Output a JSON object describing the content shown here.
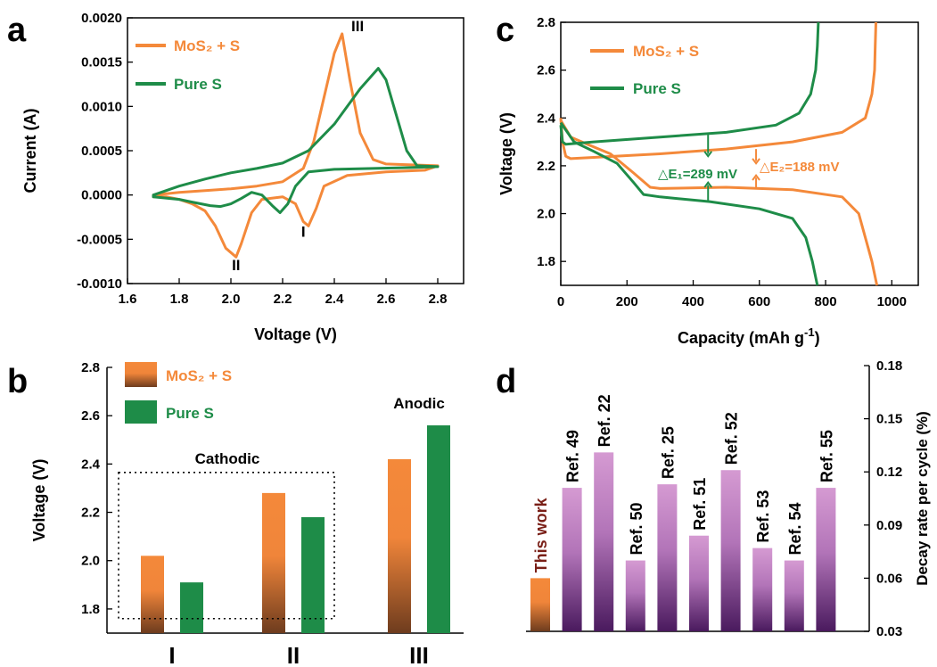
{
  "colors": {
    "orange": "#F4893A",
    "green": "#1E8C48",
    "brown": "#6E3C1E",
    "purple_top": "#D59AD2",
    "purple_bottom": "#4A1A5E",
    "axis": "#000000",
    "this_work_label": "#7A2018"
  },
  "chart_data": [
    {
      "panel": "a",
      "type": "line",
      "panel_letter": "a",
      "xlabel": "Voltage (V)",
      "ylabel": "Current (A)",
      "xlim": [
        1.6,
        2.9
      ],
      "ylim": [
        -0.001,
        0.002
      ],
      "xticks": [
        "1.6",
        "1.8",
        "2.0",
        "2.2",
        "2.4",
        "2.6",
        "2.8"
      ],
      "yticks": [
        "-0.0010",
        "-0.0005",
        "0.0000",
        "0.0005",
        "0.0010",
        "0.0015",
        "0.0020"
      ],
      "legend": [
        "MoS₂ + S",
        "Pure S"
      ],
      "legend_placement": "top-left",
      "annotations": [
        "I",
        "II",
        "III"
      ],
      "series": [
        {
          "name": "MoS₂ + S",
          "color_key": "orange",
          "x": [
            1.7,
            1.8,
            1.9,
            2.0,
            2.1,
            2.2,
            2.28,
            2.32,
            2.36,
            2.4,
            2.43,
            2.46,
            2.5,
            2.55,
            2.6,
            2.7,
            2.8,
            2.75,
            2.6,
            2.45,
            2.36,
            2.33,
            2.3,
            2.28,
            2.25,
            2.2,
            2.12,
            2.08,
            2.04,
            2.02,
            1.98,
            1.94,
            1.9,
            1.85,
            1.8,
            1.75,
            1.7
          ],
          "y": [
            0.0,
            3e-05,
            5e-05,
            7e-05,
            0.0001,
            0.00015,
            0.0003,
            0.0006,
            0.0011,
            0.0016,
            0.00182,
            0.0013,
            0.0007,
            0.0004,
            0.00035,
            0.00034,
            0.00033,
            0.00028,
            0.00026,
            0.00022,
            0.0001,
            -0.00015,
            -0.00035,
            -0.0003,
            -0.0001,
            -2e-05,
            -5e-05,
            -0.0002,
            -0.00055,
            -0.0007,
            -0.0006,
            -0.00035,
            -0.00018,
            -0.0001,
            -5e-05,
            -2e-05,
            -2e-05
          ]
        },
        {
          "name": "Pure S",
          "color_key": "green",
          "x": [
            1.7,
            1.8,
            1.9,
            2.0,
            2.1,
            2.2,
            2.3,
            2.4,
            2.5,
            2.57,
            2.6,
            2.64,
            2.68,
            2.72,
            2.8,
            2.7,
            2.55,
            2.4,
            2.3,
            2.25,
            2.22,
            2.19,
            2.16,
            2.12,
            2.08,
            2.04,
            2.0,
            1.96,
            1.92,
            1.85,
            1.8,
            1.7
          ],
          "y": [
            0.0,
            0.0001,
            0.00018,
            0.00025,
            0.0003,
            0.00036,
            0.0005,
            0.0008,
            0.0012,
            0.00143,
            0.0013,
            0.0009,
            0.0005,
            0.00033,
            0.00032,
            0.00031,
            0.0003,
            0.00029,
            0.00026,
            0.0001,
            -0.0001,
            -0.0002,
            -0.00012,
            0.0,
            3e-05,
            -4e-05,
            -0.0001,
            -0.00013,
            -0.00012,
            -8e-05,
            -5e-05,
            -2e-05
          ]
        }
      ]
    },
    {
      "panel": "c",
      "type": "line",
      "panel_letter": "c",
      "xlabel": "Capacity (mAh g",
      "xlabel_sup": "-1",
      "xlabel_close": ")",
      "ylabel": "Voltage (V)",
      "xlim": [
        0,
        1080
      ],
      "ylim": [
        1.7,
        2.8
      ],
      "xticks": [
        "0",
        "200",
        "400",
        "600",
        "800",
        "1000"
      ],
      "yticks": [
        "1.8",
        "2.0",
        "2.2",
        "2.4",
        "2.6",
        "2.8"
      ],
      "legend": [
        "MoS₂ + S",
        "Pure S"
      ],
      "legend_placement": "top-left",
      "annotations": [
        "△E₁=289 mV",
        "△E₂=188 mV"
      ],
      "series": [
        {
          "name": "MoS₂ + S (charge)",
          "color_key": "orange",
          "x": [
            0,
            5,
            15,
            30,
            100,
            300,
            500,
            700,
            850,
            920,
            940,
            948,
            950,
            952
          ],
          "y": [
            2.4,
            2.3,
            2.24,
            2.23,
            2.235,
            2.25,
            2.27,
            2.3,
            2.34,
            2.4,
            2.5,
            2.6,
            2.7,
            2.8
          ]
        },
        {
          "name": "MoS₂ + S (discharge)",
          "color_key": "orange",
          "x": [
            0,
            30,
            80,
            150,
            220,
            270,
            300,
            500,
            700,
            850,
            900,
            920,
            940,
            955
          ],
          "y": [
            2.39,
            2.32,
            2.29,
            2.25,
            2.17,
            2.11,
            2.105,
            2.11,
            2.1,
            2.07,
            2.0,
            1.9,
            1.8,
            1.7
          ]
        },
        {
          "name": "Pure S (charge)",
          "color_key": "green",
          "x": [
            0,
            5,
            15,
            100,
            300,
            500,
            650,
            720,
            755,
            770,
            775,
            778
          ],
          "y": [
            2.37,
            2.3,
            2.29,
            2.3,
            2.32,
            2.34,
            2.37,
            2.42,
            2.5,
            2.6,
            2.7,
            2.8
          ]
        },
        {
          "name": "Pure S (discharge)",
          "color_key": "green",
          "x": [
            0,
            40,
            100,
            170,
            220,
            250,
            300,
            450,
            600,
            700,
            740,
            760,
            775
          ],
          "y": [
            2.38,
            2.3,
            2.26,
            2.21,
            2.13,
            2.08,
            2.07,
            2.05,
            2.02,
            1.98,
            1.9,
            1.8,
            1.7
          ]
        }
      ]
    },
    {
      "panel": "b",
      "type": "bar",
      "panel_letter": "b",
      "categories": [
        "I",
        "II",
        "III"
      ],
      "ylabel": "Voltage (V)",
      "ylim": [
        1.7,
        2.8
      ],
      "yticks": [
        "1.8",
        "2.0",
        "2.2",
        "2.4",
        "2.6",
        "2.8"
      ],
      "legend": [
        "MoS₂ + S",
        "Pure S"
      ],
      "legend_placement": "top-left",
      "annotations": [
        "Cathodic",
        "Anodic"
      ],
      "series": [
        {
          "name": "MoS₂ + S",
          "color_key": "orange",
          "values": [
            2.02,
            2.28,
            2.42
          ]
        },
        {
          "name": "Pure S",
          "color_key": "green",
          "values": [
            1.91,
            2.18,
            2.56
          ]
        }
      ]
    },
    {
      "panel": "d",
      "type": "bar",
      "panel_letter": "d",
      "categories": [
        "This work",
        "Ref. 49",
        "Ref. 22",
        "Ref. 50",
        "Ref. 25",
        "Ref. 51",
        "Ref. 52",
        "Ref. 53",
        "Ref. 54",
        "Ref. 55"
      ],
      "ylabel_right": "Decay rate per cycle (%)",
      "ylim": [
        0.03,
        0.18
      ],
      "yticks": [
        "0.03",
        "0.06",
        "0.09",
        "0.12",
        "0.15",
        "0.18"
      ],
      "values": [
        0.06,
        0.111,
        0.131,
        0.07,
        0.113,
        0.084,
        0.121,
        0.077,
        0.07,
        0.111
      ]
    }
  ]
}
